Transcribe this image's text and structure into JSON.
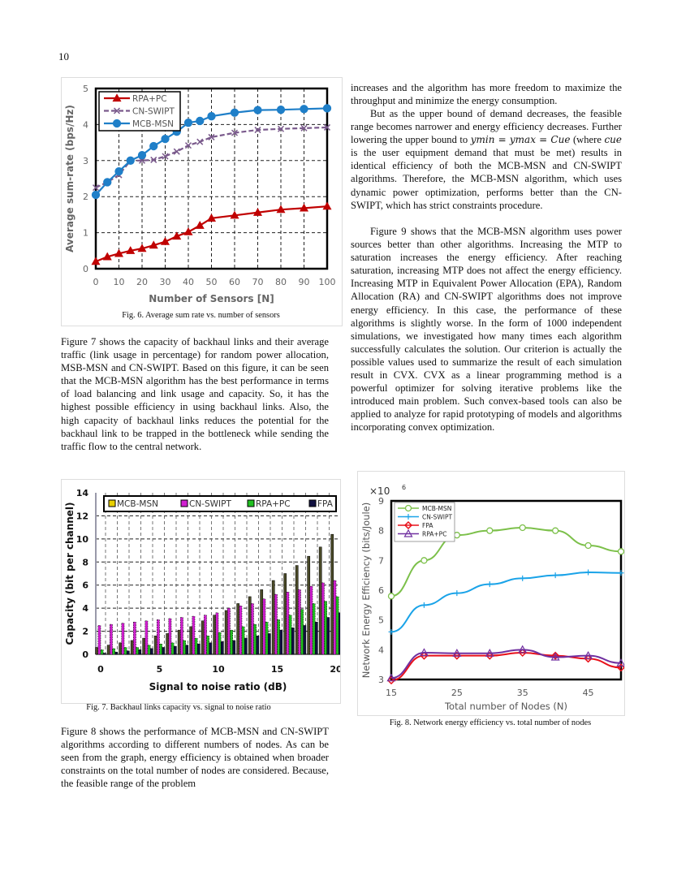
{
  "page_number": "10",
  "left_column": {
    "para_fig7": "Figure 7 shows the capacity of backhaul links and their average traffic (link usage in percentage) for random power allocation, MSB-MSN and CN-SWIPT. Based on this figure, it can be seen that the MCB-MSN algorithm has the best performance in terms of load balancing and link usage and capacity. So, it has the highest possible efficiency in using backhaul links. Also, the high capacity of backhaul links reduces the potential for the backhaul link to be trapped in the bottleneck while sending the traffic flow to the central network.",
    "para_fig8": "Figure 8 shows the performance of MCB-MSN and CN-SWIPT algorithms according to different numbers of nodes. As can be seen from the graph, energy efficiency is obtained when broader constraints on the total number of nodes are considered. Because, the feasible range of the problem"
  },
  "right_column": {
    "para1": "increases and the algorithm has more freedom to maximize the throughput and minimize the energy consumption.",
    "para2_a": "But as the upper bound of demand decreases, the feasible range becomes narrower and energy efficiency decreases. Further lowering the upper bound to ",
    "para2_m1": "ymin = ymax = Cue",
    "para2_b": " (where ",
    "para2_m2": "cue",
    "para2_c": " is the user equipment demand that must be met) results in identical efficiency of both the MCB-MSN and CN-SWIPT algorithms. Therefore, the MCB-MSN algorithm, which uses dynamic power optimization, performs better than the CN-SWIPT, which has strict constraints procedure.",
    "para3": "Figure 9 shows that the MCB-MSN algorithm uses power sources better than other algorithms. Increasing the MTP to saturation increases the energy efficiency. After reaching saturation, increasing MTP does not affect the energy efficiency. Increasing MTP in Equivalent Power Allocation (EPA), Random Allocation (RA) and CN-SWIPT algorithms does not improve energy efficiency. In this case, the performance of these algorithms is slightly worse. In the form of 1000 independent simulations, we investigated how many times each algorithm successfully calculates the solution. Our criterion is actually the possible values used to summarize the result of each simulation result in CVX. CVX as a linear programming method is a powerful optimizer for solving iterative problems like the introduced main problem. Such convex-based tools can also be applied to analyze for rapid prototyping of models and algorithms incorporating convex optimization."
  },
  "captions": {
    "fig6": "Fig. 6. Average sum rate vs. number of sensors",
    "fig7": "Fig. 7. Backhaul links capacity vs. signal to noise ratio",
    "fig8": "Fig. 8. Network energy efficiency vs. total number of nodes"
  },
  "chart_data": [
    {
      "id": "fig6",
      "type": "line",
      "xlabel": "Number of Sensors [N]",
      "ylabel": "Average sum-rate (bps/Hz)",
      "xlim": [
        0,
        100
      ],
      "ylim": [
        0,
        5
      ],
      "xticks": [
        0,
        10,
        20,
        30,
        40,
        50,
        60,
        70,
        80,
        90,
        100
      ],
      "yticks": [
        0,
        1,
        2,
        3,
        4,
        5
      ],
      "grid": true,
      "legend": "top-left",
      "x": [
        0,
        5,
        10,
        15,
        20,
        25,
        30,
        35,
        40,
        45,
        50,
        60,
        70,
        80,
        90,
        100
      ],
      "series": [
        {
          "name": "RPA+PC",
          "color": "#c00000",
          "marker": "triangle",
          "values": [
            0.2,
            0.33,
            0.42,
            0.5,
            0.56,
            0.65,
            0.75,
            0.9,
            1.02,
            1.2,
            1.4,
            1.48,
            1.56,
            1.64,
            1.68,
            1.73
          ]
        },
        {
          "name": "CN-SWIPT",
          "color": "#7a5a8c",
          "marker": "x",
          "dash": true,
          "values": [
            2.25,
            2.4,
            2.6,
            3.0,
            3.0,
            3.02,
            3.12,
            3.25,
            3.42,
            3.52,
            3.65,
            3.77,
            3.85,
            3.88,
            3.9,
            3.92
          ]
        },
        {
          "name": "MCB-MSN",
          "color": "#1f7fc8",
          "marker": "circle",
          "values": [
            2.05,
            2.4,
            2.7,
            3.0,
            3.15,
            3.4,
            3.6,
            3.8,
            4.05,
            4.1,
            4.23,
            4.33,
            4.4,
            4.41,
            4.43,
            4.45
          ]
        }
      ]
    },
    {
      "id": "fig7",
      "type": "bar",
      "xlabel": "Signal to noise ratio (dB)",
      "ylabel": "Capacity (bit per channel)",
      "xlim": [
        0,
        20
      ],
      "ylim": [
        0,
        14
      ],
      "xticks": [
        0,
        5,
        10,
        15,
        20
      ],
      "yticks": [
        0,
        2,
        4,
        6,
        8,
        10,
        12,
        14
      ],
      "grid": true,
      "legend": "top",
      "categories": [
        0,
        1,
        2,
        3,
        4,
        5,
        6,
        7,
        8,
        9,
        10,
        11,
        12,
        13,
        14,
        15,
        16,
        17,
        18,
        19,
        20
      ],
      "series": [
        {
          "name": "MCB-MSN",
          "color": "#4a4a28",
          "legend_color": "#e8d000",
          "values": [
            0.6,
            0.8,
            1.0,
            1.2,
            1.4,
            1.6,
            1.8,
            2.1,
            2.4,
            2.9,
            3.4,
            3.8,
            4.4,
            5.0,
            5.6,
            6.4,
            7.0,
            7.7,
            8.5,
            9.3,
            10.4
          ]
        },
        {
          "name": "CN-SWIPT",
          "color": "#d020d0",
          "values": [
            2.5,
            2.6,
            2.7,
            2.8,
            2.9,
            3.0,
            3.1,
            3.2,
            3.3,
            3.4,
            3.6,
            4.0,
            4.2,
            4.4,
            4.8,
            5.2,
            5.4,
            5.6,
            5.9,
            6.2,
            6.4
          ]
        },
        {
          "name": "RPA+PC",
          "color": "#20c020",
          "values": [
            0.4,
            0.5,
            0.6,
            0.6,
            0.8,
            0.9,
            1.0,
            1.2,
            1.4,
            1.6,
            1.9,
            2.1,
            2.4,
            2.6,
            2.8,
            3.0,
            3.4,
            3.9,
            4.4,
            4.6,
            5.0
          ]
        },
        {
          "name": "FPA",
          "color": "#101040",
          "values": [
            0.1,
            0.2,
            0.3,
            0.4,
            0.5,
            0.6,
            0.7,
            0.8,
            0.9,
            1.0,
            1.1,
            1.2,
            1.4,
            1.6,
            1.8,
            2.1,
            2.3,
            2.5,
            2.8,
            3.2,
            3.6
          ]
        }
      ]
    },
    {
      "id": "fig8",
      "type": "line",
      "xlabel": "Total number of Nodes (N)",
      "ylabel": "Network Energy Efficiency (bits/Joule)",
      "y_multiplier": "×10",
      "y_multiplier_exp": "6",
      "xlim": [
        15,
        50
      ],
      "ylim": [
        3,
        9
      ],
      "xticks": [
        15,
        25,
        35,
        45
      ],
      "yticks": [
        3,
        4,
        5,
        6,
        7,
        8,
        9
      ],
      "grid": false,
      "legend": "top-left",
      "x": [
        15,
        20,
        25,
        30,
        35,
        40,
        45,
        50
      ],
      "series": [
        {
          "name": "MCB-MSN",
          "color": "#7cc04a",
          "marker": "circle",
          "values": [
            5.8,
            7.0,
            7.85,
            8.0,
            8.1,
            8.0,
            7.5,
            7.3
          ]
        },
        {
          "name": "CN-SWIPT",
          "color": "#1aa3e8",
          "marker": "plus",
          "values": [
            4.6,
            5.5,
            5.9,
            6.2,
            6.4,
            6.5,
            6.6,
            6.58
          ]
        },
        {
          "name": "FPA",
          "color": "#e8101a",
          "marker": "diamond",
          "values": [
            2.97,
            3.8,
            3.8,
            3.8,
            3.9,
            3.8,
            3.7,
            3.4
          ]
        },
        {
          "name": "RPA+PC",
          "color": "#7030a0",
          "marker": "triangle",
          "values": [
            3.05,
            3.9,
            3.88,
            3.88,
            4.0,
            3.75,
            3.8,
            3.55
          ]
        }
      ]
    }
  ]
}
